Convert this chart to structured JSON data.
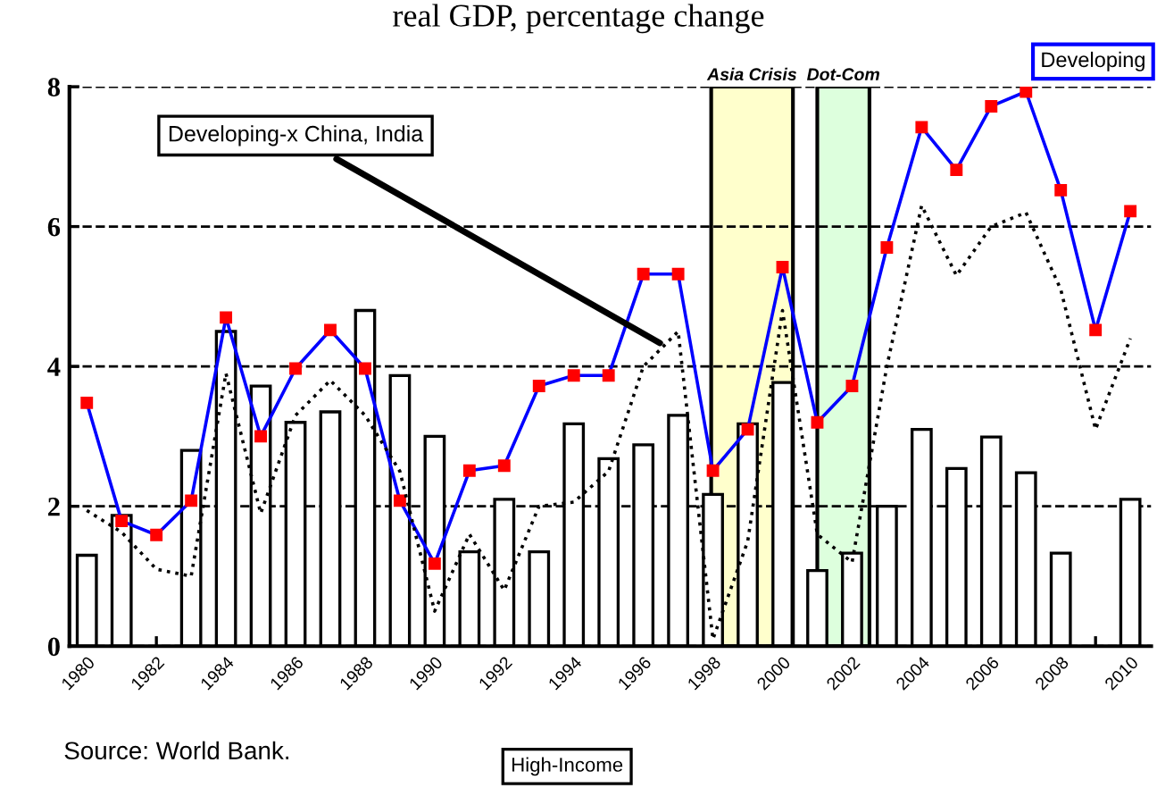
{
  "chart_data": {
    "type": "bar",
    "title": "real GDP, percentage change",
    "x": [
      1980,
      1981,
      1982,
      1983,
      1984,
      1985,
      1986,
      1987,
      1988,
      1989,
      1990,
      1991,
      1992,
      1993,
      1994,
      1995,
      1996,
      1997,
      1998,
      1999,
      2000,
      2001,
      2002,
      2003,
      2004,
      2005,
      2006,
      2007,
      2008,
      2009,
      2010
    ],
    "series": [
      {
        "name": "High-Income",
        "color": "#ffffff",
        "values": [
          1.3,
          1.87,
          null,
          2.8,
          4.5,
          3.72,
          3.2,
          3.35,
          4.8,
          3.87,
          3.0,
          1.35,
          2.1,
          1.35,
          3.18,
          2.68,
          2.88,
          3.3,
          2.17,
          3.18,
          3.77,
          1.08,
          1.33,
          2.0,
          3.1,
          2.54,
          2.99,
          2.48,
          1.33,
          null,
          2.1
        ]
      },
      {
        "name": "Developing",
        "type": "line",
        "color": "#0000ff",
        "marker": "square",
        "line_style": "solid",
        "values": [
          3.48,
          1.79,
          1.59,
          2.08,
          4.7,
          3.0,
          3.97,
          4.52,
          3.97,
          2.08,
          1.18,
          2.51,
          2.58,
          3.72,
          3.87,
          3.87,
          5.32,
          5.32,
          2.51,
          3.1,
          5.42,
          3.2,
          3.72,
          5.7,
          7.42,
          6.81,
          7.72,
          7.93,
          6.52,
          4.52,
          6.22
        ]
      },
      {
        "name": "Developing-x China, India",
        "type": "line",
        "color": "#000000",
        "marker": "none",
        "line_style": "dotted",
        "values": [
          1.94,
          1.63,
          1.1,
          1.0,
          3.9,
          1.9,
          3.3,
          3.8,
          3.3,
          2.5,
          0.5,
          1.6,
          0.8,
          2.0,
          2.06,
          2.5,
          4.0,
          4.5,
          0.1,
          1.5,
          4.8,
          1.6,
          1.2,
          4.0,
          6.3,
          5.3,
          6.0,
          6.2,
          5.1,
          3.1,
          4.4
        ]
      }
    ],
    "xlim": [
      1979.5,
      2010.6
    ],
    "xticks": [
      1980,
      {
        "value": 1981,
        "label": null
      },
      1982,
      {
        "value": 1983,
        "label": null
      },
      1984,
      {
        "value": 1985,
        "label": null
      },
      1986,
      {
        "value": 1987,
        "label": null
      },
      1988,
      {
        "value": 1989,
        "label": null
      },
      1990,
      {
        "value": 1991,
        "label": null
      },
      1992,
      {
        "value": 1993,
        "label": null
      },
      1994,
      {
        "value": 1995,
        "label": null
      },
      1996,
      {
        "value": 1997,
        "label": null
      },
      1998,
      {
        "value": 1999,
        "label": null
      },
      2000,
      {
        "value": 2001,
        "label": null
      },
      2002,
      {
        "value": 2003,
        "label": null
      },
      2004,
      {
        "value": 2005,
        "label": null
      },
      2006,
      {
        "value": 2007,
        "label": null
      },
      2008,
      {
        "value": 2009,
        "label": null
      },
      2010
    ],
    "ylim": [
      0,
      8
    ],
    "yticks": [
      0,
      2,
      4,
      6,
      8
    ],
    "bands": [
      {
        "axis": "x",
        "from": 1997.95,
        "to": 2000.3,
        "label": "Asia Crisis",
        "color": "#ffffcc"
      },
      {
        "axis": "x",
        "from": 2001.0,
        "to": 2002.5,
        "label": "Dot-Com",
        "color": "#ddffdd"
      }
    ],
    "grid": "y",
    "legend": false,
    "annotations": [
      "Source: World Bank."
    ]
  }
}
